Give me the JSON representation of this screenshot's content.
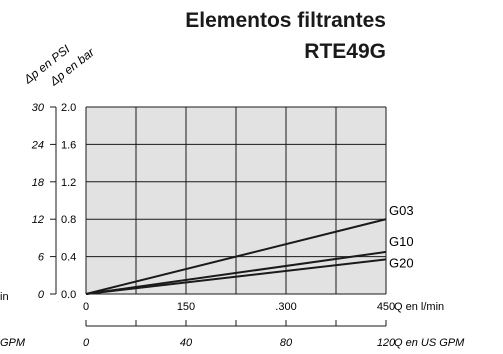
{
  "header": {
    "title_line1": "Elementos filtrantes",
    "title_line2": "RTE49G"
  },
  "chart_data": {
    "type": "line",
    "axes": {
      "y_primary": {
        "label": "Δp en bar",
        "ticks": [
          "0.0",
          "0.4",
          "0.8",
          "1.2",
          "1.6",
          "2.0"
        ],
        "range": [
          0,
          2.0
        ]
      },
      "y_secondary": {
        "label": "Δp en PSI",
        "ticks": [
          "0",
          "6",
          "12",
          "18",
          "24",
          "30"
        ]
      },
      "x_primary": {
        "label": "Q en l/min",
        "ticks": [
          "0",
          "150",
          ".300",
          "450"
        ],
        "range": [
          0,
          450
        ]
      },
      "x_secondary": {
        "label": "Q en US GPM",
        "ticks": [
          "0",
          "40",
          "80",
          "120"
        ]
      }
    },
    "grid": true,
    "series": [
      {
        "name": "G03",
        "x": [
          0,
          450
        ],
        "y": [
          0,
          0.8
        ]
      },
      {
        "name": "G10",
        "x": [
          0,
          450
        ],
        "y": [
          0,
          0.45
        ]
      },
      {
        "name": "G20",
        "x": [
          0,
          450
        ],
        "y": [
          0,
          0.37
        ]
      }
    ],
    "clipped_left_labels": [
      "in",
      "GPM"
    ]
  },
  "colors": {
    "plot_background": "#e2e2e2",
    "grid": "#1a1a1a",
    "line": "#1a1a1a"
  }
}
